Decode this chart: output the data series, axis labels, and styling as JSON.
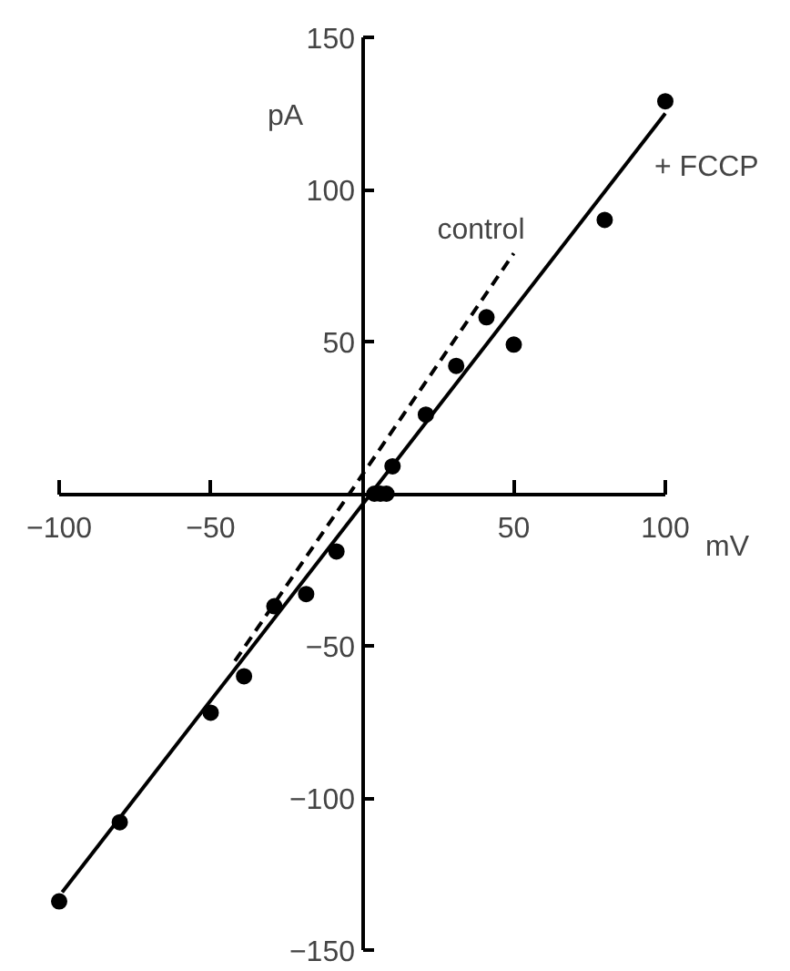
{
  "chart_data": {
    "type": "scatter",
    "xlabel": "mV",
    "ylabel": "pA",
    "xlim": [
      -100,
      100
    ],
    "ylim": [
      -150,
      150
    ],
    "xticks": [
      -100,
      -50,
      50,
      100
    ],
    "yticks": [
      -150,
      -100,
      -50,
      50,
      100,
      150
    ],
    "series": [
      {
        "color": "#000000",
        "marker": "circle",
        "x": [
          -100,
          -80,
          -50,
          -39,
          -29,
          -18.5,
          -8.5,
          4,
          6,
          8,
          10,
          21,
          31,
          41,
          50,
          80,
          100
        ],
        "values": [
          -134,
          -108,
          -72,
          -60,
          -37,
          -33,
          -19,
          0,
          0,
          0,
          9,
          26,
          42,
          58,
          49,
          90,
          129
        ]
      },
      {
        "type": "line",
        "name": "+ FCCP",
        "color": "#000000",
        "line_style": "solid",
        "x": [
          -99,
          100
        ],
        "values": [
          -131,
          125
        ]
      },
      {
        "type": "line",
        "name": "control",
        "color": "#000000",
        "line_style": "dashed",
        "x": [
          -42,
          50
        ],
        "values": [
          -55,
          79
        ]
      }
    ]
  }
}
